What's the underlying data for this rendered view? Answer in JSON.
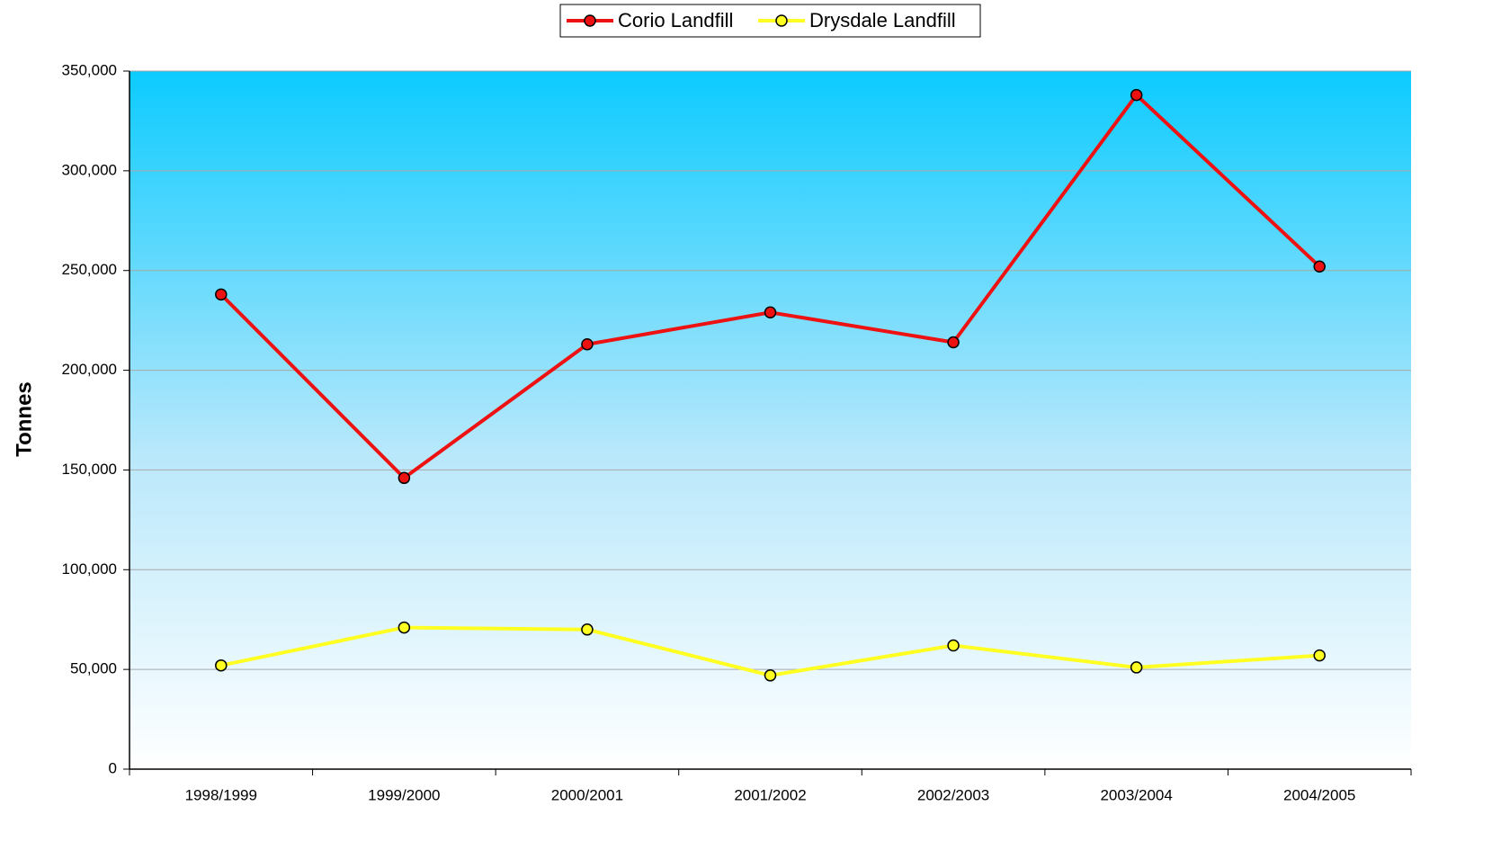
{
  "chart_data": {
    "type": "line",
    "y_label": "Tonnes",
    "categories": [
      "1998/1999",
      "1999/2000",
      "2000/2001",
      "2001/2002",
      "2002/2003",
      "2003/2004",
      "2004/2005"
    ],
    "series": [
      {
        "name": "Corio Landfill",
        "color": "#ee1111",
        "values": [
          238000,
          146000,
          213000,
          229000,
          214000,
          338000,
          252000
        ]
      },
      {
        "name": "Drysdale Landfill",
        "color": "#ffff22",
        "values": [
          52000,
          71000,
          70000,
          47000,
          62000,
          51000,
          57000
        ]
      }
    ],
    "ylim": [
      0,
      350000
    ],
    "yticks": [
      0,
      {
        "value": 50000,
        "label": "50,000"
      },
      {
        "value": 100000,
        "label": "100,000"
      },
      {
        "value": 150000,
        "label": "150,000"
      },
      {
        "value": 200000,
        "label": "200,000"
      },
      {
        "value": 250000,
        "label": "250,000"
      },
      {
        "value": 300000,
        "label": "300,000"
      },
      {
        "value": 350000,
        "label": "350,000"
      }
    ],
    "grid": true,
    "legend": "top"
  }
}
